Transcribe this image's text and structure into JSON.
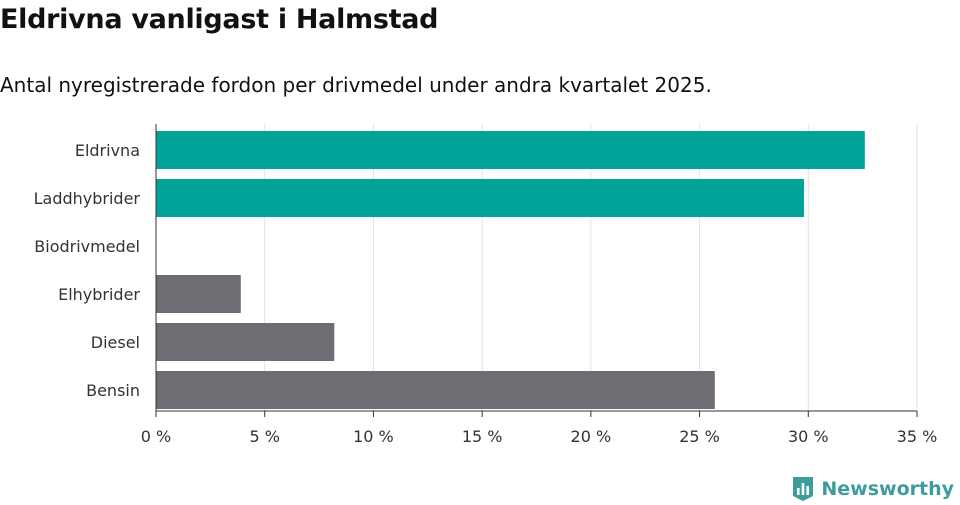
{
  "header": {
    "title": "Eldrivna vanligast i Halmstad",
    "subtitle": "Antal nyregistrerade fordon per drivmedel under andra kvartalet 2025."
  },
  "brand": {
    "name": "Newsworthy",
    "icon": "newsworthy-logo-icon",
    "color": "#3f9c9c"
  },
  "chart_data": {
    "type": "bar",
    "orientation": "horizontal",
    "categories": [
      "Eldrivna",
      "Laddhybrider",
      "Biodrivmedel",
      "Elhybrider",
      "Diesel",
      "Bensin"
    ],
    "values": [
      32.6,
      29.8,
      0,
      3.9,
      8.2,
      25.7
    ],
    "colors": [
      "#00a39a",
      "#00a39a",
      "#00a39a",
      "#6e6d74",
      "#6e6d74",
      "#6e6d74"
    ],
    "xlim": [
      0,
      35
    ],
    "xticks": [
      0,
      5,
      10,
      15,
      20,
      25,
      30,
      35
    ],
    "tick_labels": [
      "0 %",
      "5 %",
      "10 %",
      "15 %",
      "20 %",
      "25 %",
      "30 %",
      "35 %"
    ],
    "grid": true,
    "title": "Eldrivna vanligast i Halmstad",
    "xlabel": "",
    "ylabel": ""
  }
}
